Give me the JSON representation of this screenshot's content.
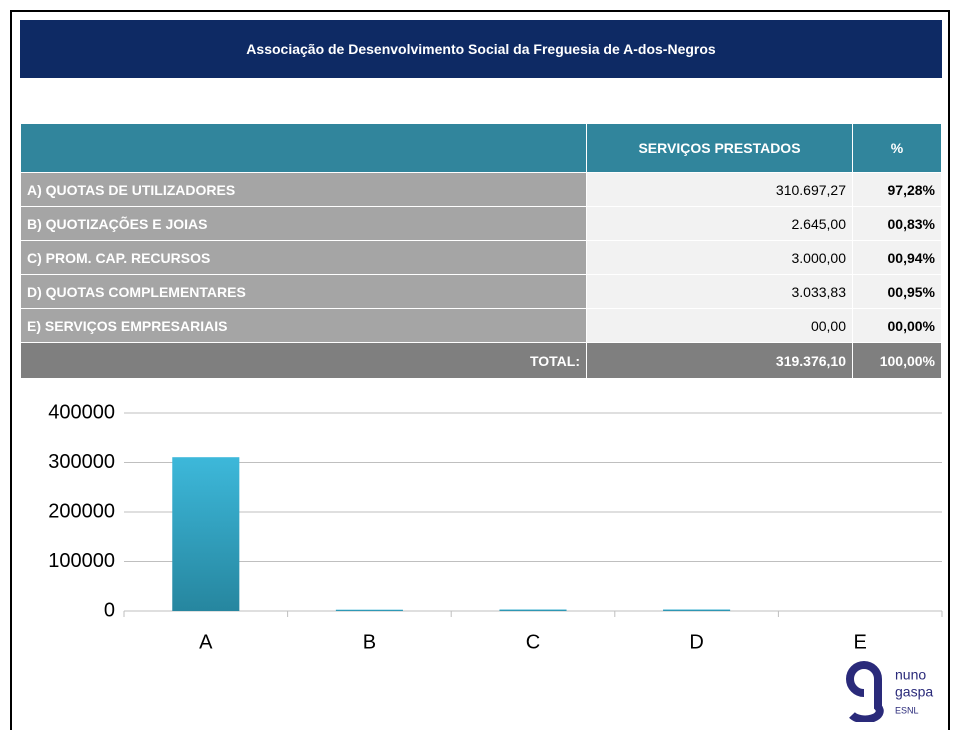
{
  "header": {
    "title": "Associação de Desenvolvimento Social da Freguesia de A-dos-Negros"
  },
  "table": {
    "columns": [
      "SERVIÇOS PRESTADOS",
      "%"
    ],
    "rows": [
      [
        "A) QUOTAS DE UTILIZADORES",
        "310.697,27",
        "97,28%"
      ],
      [
        "B) QUOTIZAÇÕES E JOIAS",
        "2.645,00",
        "00,83%"
      ],
      [
        "C) PROM. CAP. RECURSOS",
        "3.000,00",
        "00,94%"
      ],
      [
        "D) QUOTAS COMPLEMENTARES",
        "3.033,83",
        "00,95%"
      ],
      [
        "E) SERVIÇOS EMPRESARIAIS",
        "00,00",
        "00,00%"
      ]
    ],
    "total": [
      "TOTAL:",
      "319.376,10",
      "100,00%"
    ]
  },
  "chart_data": {
    "type": "bar",
    "categories": [
      "A",
      "B",
      "C",
      "D",
      "E"
    ],
    "values": [
      310697.27,
      2645,
      3000,
      3033.83,
      0
    ],
    "color": "#2e9fc0",
    "ylim": [
      0,
      400000
    ],
    "yticks": [
      0,
      100000,
      200000,
      300000,
      400000
    ],
    "grid": true
  },
  "logo": {
    "line1": "nuno",
    "line2": "gaspa",
    "line3": "ESNL"
  }
}
